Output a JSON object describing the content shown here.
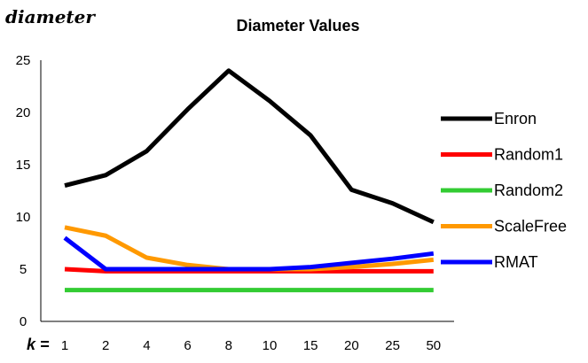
{
  "chart_data": {
    "type": "line",
    "title": "Diameter Values",
    "ylabel": "diameter",
    "xlabel_prefix": "k =",
    "categories": [
      "1",
      "2",
      "4",
      "6",
      "8",
      "10",
      "15",
      "20",
      "25",
      "50"
    ],
    "ylim": [
      0,
      25
    ],
    "yticks": [
      0,
      5,
      10,
      15,
      20,
      25
    ],
    "grid": false,
    "legend_position": "right",
    "series": [
      {
        "name": "Enron",
        "color": "#000000",
        "values": [
          13,
          14,
          16.3,
          20.3,
          24,
          21.1,
          17.8,
          12.6,
          11.3,
          9.5
        ]
      },
      {
        "name": "Random1",
        "color": "#ff0000",
        "values": [
          5,
          4.8,
          4.8,
          4.8,
          4.8,
          4.8,
          4.8,
          4.8,
          4.8,
          4.8
        ]
      },
      {
        "name": "Random2",
        "color": "#33cc33",
        "values": [
          3,
          3,
          3,
          3,
          3,
          3,
          3,
          3,
          3,
          3
        ]
      },
      {
        "name": "ScaleFree",
        "color": "#ff9900",
        "values": [
          9,
          8.2,
          6.1,
          5.4,
          5.0,
          5.0,
          5.0,
          5.2,
          5.5,
          5.9
        ]
      },
      {
        "name": "RMAT",
        "color": "#0000ff",
        "values": [
          8,
          5,
          5,
          5,
          5,
          5,
          5.2,
          5.6,
          6.0,
          6.5
        ]
      }
    ]
  }
}
